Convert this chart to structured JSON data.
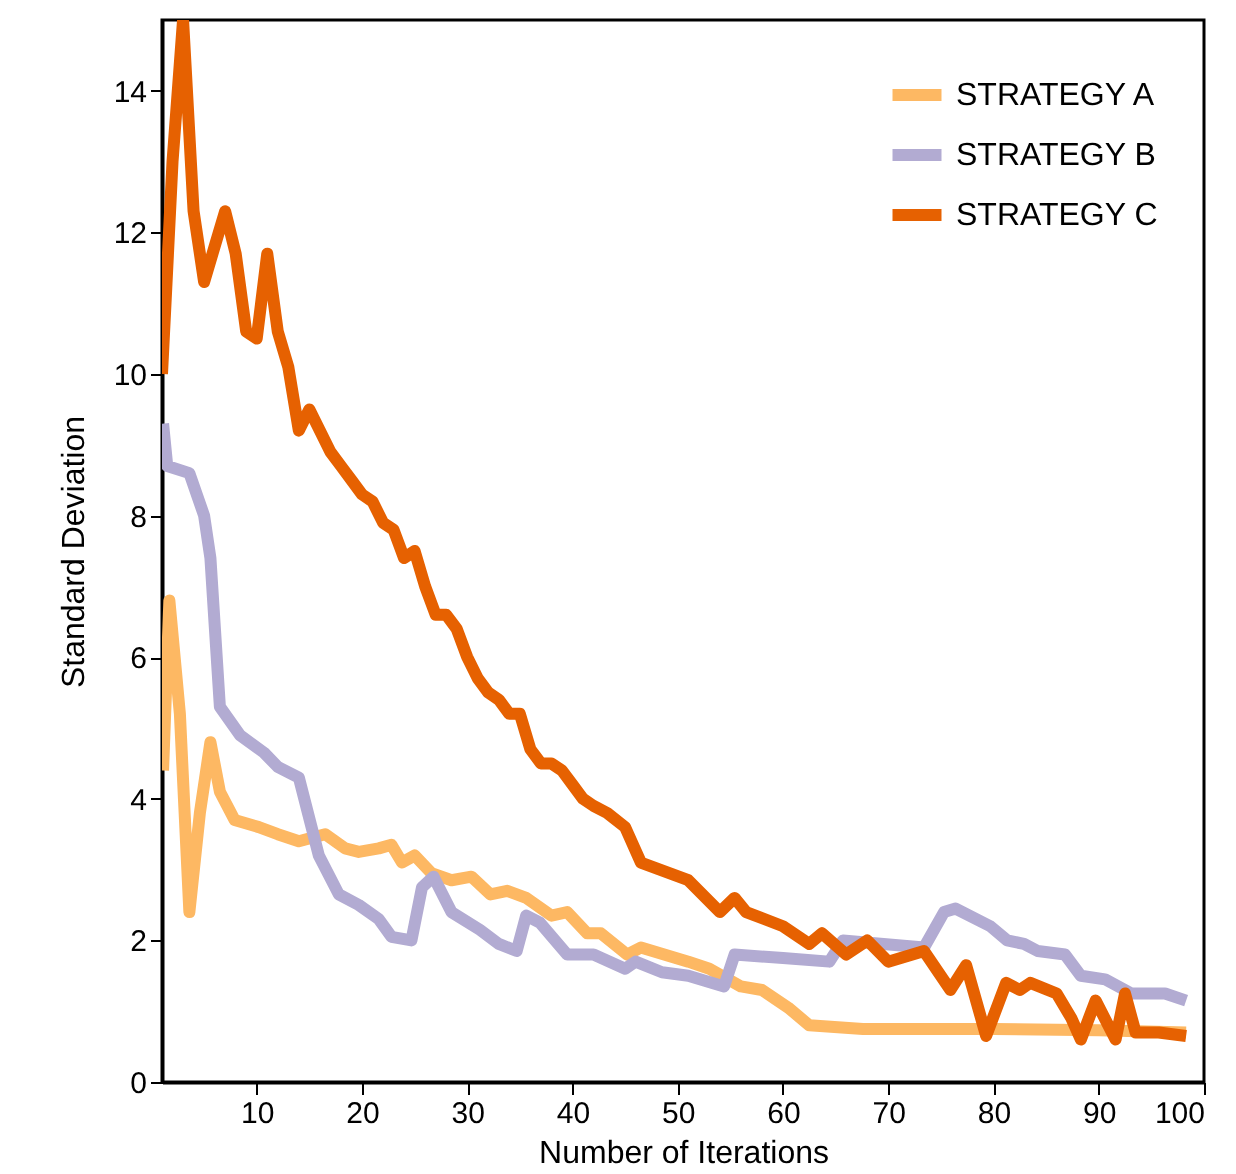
{
  "chart_data": {
    "type": "line",
    "xlabel": "Number of Iterations",
    "ylabel": "Standard Deviation",
    "xlim": [
      1,
      100
    ],
    "ylim": [
      0,
      15
    ],
    "xticks": [
      10,
      20,
      30,
      40,
      50,
      60,
      70,
      80,
      90,
      100
    ],
    "yticks": [
      0,
      2,
      4,
      6,
      8,
      10,
      12,
      14
    ],
    "legend": "top right",
    "grid": false,
    "line_style": "solid",
    "series": [
      {
        "name": "STRATEGY A",
        "color": "#fdb863",
        "x": [
          1.1,
          1.7,
          2.7,
          3.6,
          4.6,
          5.6,
          6.5,
          7.9,
          10.2,
          12,
          14,
          16.5,
          18.4,
          19.7,
          21.6,
          22.8,
          23.8,
          25,
          26.6,
          28.5,
          30.4,
          32.2,
          33.8,
          35.6,
          38,
          39.5,
          41.4,
          42.7,
          45.2,
          46.5,
          51,
          53,
          56,
          58,
          60.5,
          62.5,
          67.6,
          74,
          80,
          90,
          98.3
        ],
        "values": [
          4.4,
          6.8,
          5.2,
          2.4,
          3.8,
          4.8,
          4.1,
          3.7,
          3.6,
          3.5,
          3.4,
          3.5,
          3.3,
          3.25,
          3.3,
          3.35,
          3.1,
          3.2,
          2.95,
          2.85,
          2.9,
          2.65,
          2.7,
          2.6,
          2.35,
          2.4,
          2.1,
          2.1,
          1.8,
          1.9,
          1.7,
          1.6,
          1.35,
          1.3,
          1.05,
          0.8,
          0.75,
          0.75,
          0.75,
          0.73,
          0.7
        ]
      },
      {
        "name": "STRATEGY B",
        "color": "#b2abd2",
        "x": [
          1.1,
          1.5,
          3.6,
          5,
          5.6,
          6.5,
          8.4,
          10.7,
          12,
          14,
          15.9,
          17.8,
          19.7,
          21.6,
          22.8,
          24.7,
          25.7,
          26.8,
          28.5,
          31.2,
          33,
          34.7,
          35.6,
          36.9,
          39.5,
          42,
          45,
          46,
          48.5,
          51,
          54.4,
          55.4,
          60,
          64.4,
          65.7,
          73.4,
          75.3,
          76.4,
          79.7,
          81.3,
          82.9,
          84.2,
          86.8,
          88.3,
          90.6,
          93.1,
          96.3,
          98.3
        ],
        "values": [
          9.3,
          8.7,
          8.6,
          8.0,
          7.4,
          5.3,
          4.9,
          4.65,
          4.45,
          4.3,
          3.2,
          2.65,
          2.5,
          2.3,
          2.05,
          2.0,
          2.75,
          2.9,
          2.4,
          2.15,
          1.95,
          1.85,
          2.35,
          2.25,
          1.8,
          1.8,
          1.6,
          1.7,
          1.55,
          1.5,
          1.35,
          1.8,
          1.75,
          1.7,
          2.0,
          1.9,
          2.4,
          2.45,
          2.2,
          2.0,
          1.95,
          1.85,
          1.8,
          1.5,
          1.45,
          1.25,
          1.25,
          1.15
        ]
      },
      {
        "name": "STRATEGY C",
        "color": "#e66101",
        "x": [
          1,
          2,
          3,
          4,
          5,
          6,
          7,
          8,
          9,
          10,
          11,
          12,
          13,
          14,
          15,
          16,
          17,
          18,
          19,
          20,
          21,
          22,
          23,
          24,
          25,
          26,
          27,
          28,
          29,
          30,
          31,
          32,
          33,
          34,
          35,
          36,
          37,
          38,
          39,
          40,
          41,
          42,
          43.3,
          45,
          46.5,
          51,
          54,
          55.4,
          56.5,
          60,
          62.5,
          63.7,
          66,
          68,
          70,
          73.4,
          75.9,
          77.4,
          79.3,
          81.2,
          82.5,
          83.5,
          86,
          87.4,
          88.3,
          89.7,
          91.6,
          92.5,
          93.5,
          95.7,
          98.3
        ],
        "values": [
          10,
          13,
          15,
          12.3,
          11.3,
          11.8,
          12.3,
          11.7,
          10.6,
          10.5,
          11.7,
          10.6,
          10.1,
          9.2,
          9.5,
          9.2,
          8.9,
          8.7,
          8.5,
          8.3,
          8.2,
          7.9,
          7.8,
          7.4,
          7.5,
          7.0,
          6.6,
          6.6,
          6.4,
          6.0,
          5.7,
          5.5,
          5.4,
          5.2,
          5.2,
          4.7,
          4.5,
          4.5,
          4.4,
          4.2,
          4.0,
          3.9,
          3.8,
          3.6,
          3.1,
          2.85,
          2.4,
          2.6,
          2.4,
          2.2,
          1.95,
          2.1,
          1.8,
          2.0,
          1.7,
          1.85,
          1.3,
          1.65,
          0.65,
          1.4,
          1.3,
          1.4,
          1.25,
          0.9,
          0.6,
          1.15,
          0.6,
          1.25,
          0.7,
          0.7,
          0.65
        ]
      }
    ]
  }
}
